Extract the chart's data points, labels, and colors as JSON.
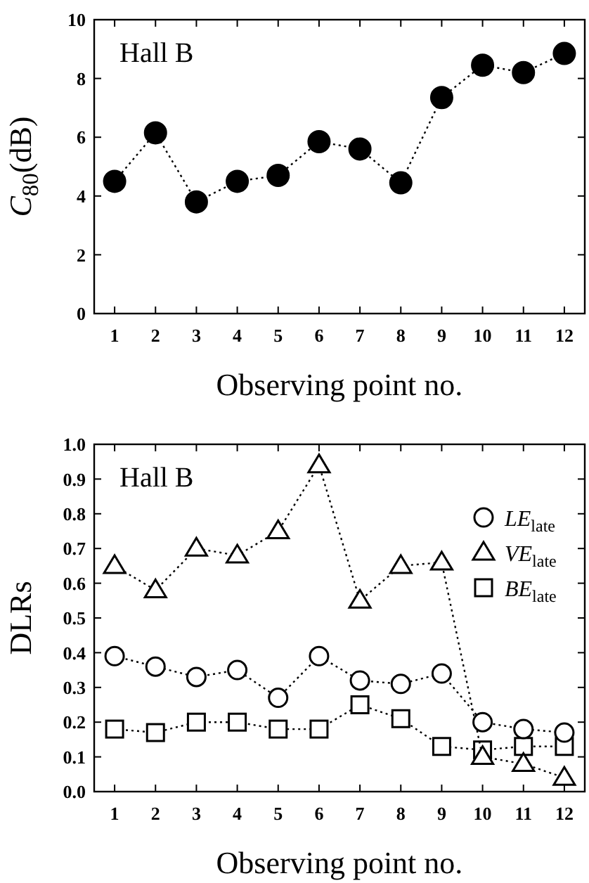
{
  "chart_data": [
    {
      "type": "line",
      "annotations": [
        "Hall B"
      ],
      "xlabel": "Observing point no.",
      "ylabel": "C$_{80}$(dB)",
      "x": [
        1,
        2,
        3,
        4,
        5,
        6,
        7,
        8,
        9,
        10,
        11,
        12
      ],
      "xlim": [
        0.5,
        12.5
      ],
      "xticks": [
        1,
        2,
        3,
        4,
        5,
        6,
        7,
        8,
        9,
        10,
        11,
        12
      ],
      "ylim": [
        0,
        10
      ],
      "yticks": [
        0,
        2,
        4,
        6,
        8,
        10
      ],
      "marker": "circle",
      "line_style": "dotted",
      "legend": false,
      "grid": false,
      "series": [
        {
          "color": "#000000",
          "values": [
            4.5,
            6.15,
            3.8,
            4.5,
            4.7,
            5.85,
            5.6,
            4.45,
            7.35,
            8.45,
            8.2,
            8.85
          ]
        }
      ]
    },
    {
      "type": "line",
      "annotations": [
        "Hall B"
      ],
      "xlabel": "Observing point no.",
      "ylabel": "DLRs",
      "x": [
        1,
        2,
        3,
        4,
        5,
        6,
        7,
        8,
        9,
        10,
        11,
        12
      ],
      "xlim": [
        0.5,
        12.5
      ],
      "xticks": [
        1,
        2,
        3,
        4,
        5,
        6,
        7,
        8,
        9,
        10,
        11,
        12
      ],
      "ylim": [
        0,
        1
      ],
      "yticks": [
        {
          "value": 0,
          "label": "0.0"
        },
        0.1,
        0.2,
        0.3,
        0.4,
        0.5,
        0.6,
        0.7,
        0.8,
        0.9,
        {
          "value": 1,
          "label": "1.0"
        }
      ],
      "line_style": "dotted",
      "legend": "top right",
      "grid": false,
      "series": [
        {
          "name": "LE$_{late}$",
          "marker": "circle",
          "color": "#000000",
          "values": [
            0.39,
            0.36,
            0.33,
            0.35,
            0.27,
            0.39,
            0.32,
            0.31,
            0.34,
            0.2,
            0.18,
            0.17
          ]
        },
        {
          "name": "VE$_{late}$",
          "marker": "triangle",
          "color": "#000000",
          "values": [
            0.65,
            0.58,
            0.7,
            0.68,
            0.75,
            0.94,
            0.55,
            0.65,
            0.66,
            0.1,
            0.08,
            0.04
          ]
        },
        {
          "name": "BE$_{late}$",
          "marker": "square",
          "color": "#000000",
          "values": [
            0.18,
            0.17,
            0.2,
            0.2,
            0.18,
            0.18,
            0.25,
            0.21,
            0.13,
            0.12,
            0.13,
            0.13
          ]
        }
      ]
    }
  ]
}
